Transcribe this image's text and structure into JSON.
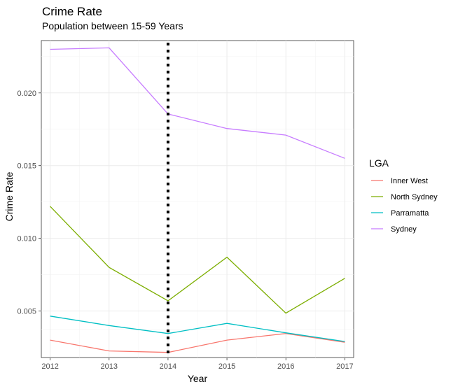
{
  "chart_data": {
    "type": "line",
    "title": "Crime Rate",
    "subtitle": "Population between 15-59 Years",
    "xlabel": "Year",
    "ylabel": "Crime Rate",
    "x": [
      2012,
      2013,
      2014,
      2015,
      2016,
      2017
    ],
    "xlim": [
      2011.85,
      2017.15
    ],
    "ylim": [
      0.0018,
      0.0236
    ],
    "yticks": [
      0.005,
      0.01,
      0.015,
      0.02
    ],
    "ytick_labels": [
      "0.005",
      "0.010",
      "0.015",
      "0.020"
    ],
    "xtick_labels": [
      "2012",
      "2013",
      "2014",
      "2015",
      "2016",
      "2017"
    ],
    "grid": true,
    "legend_title": "LGA",
    "legend_position": "right",
    "vline": {
      "x": 2014,
      "style": "dotted",
      "color": "#000000"
    },
    "series": [
      {
        "name": "Inner West",
        "color": "#F8766D",
        "values": [
          0.003,
          0.00225,
          0.00215,
          0.003,
          0.00345,
          0.00285
        ]
      },
      {
        "name": "North Sydney",
        "color": "#7CAE00",
        "values": [
          0.0122,
          0.008,
          0.0057,
          0.0087,
          0.00485,
          0.00725
        ]
      },
      {
        "name": "Parramatta",
        "color": "#00BFC4",
        "values": [
          0.00465,
          0.004,
          0.00345,
          0.00415,
          0.0035,
          0.0029
        ]
      },
      {
        "name": "Sydney",
        "color": "#C77CFF",
        "values": [
          0.023,
          0.0231,
          0.01855,
          0.01755,
          0.0171,
          0.0155
        ]
      }
    ]
  }
}
